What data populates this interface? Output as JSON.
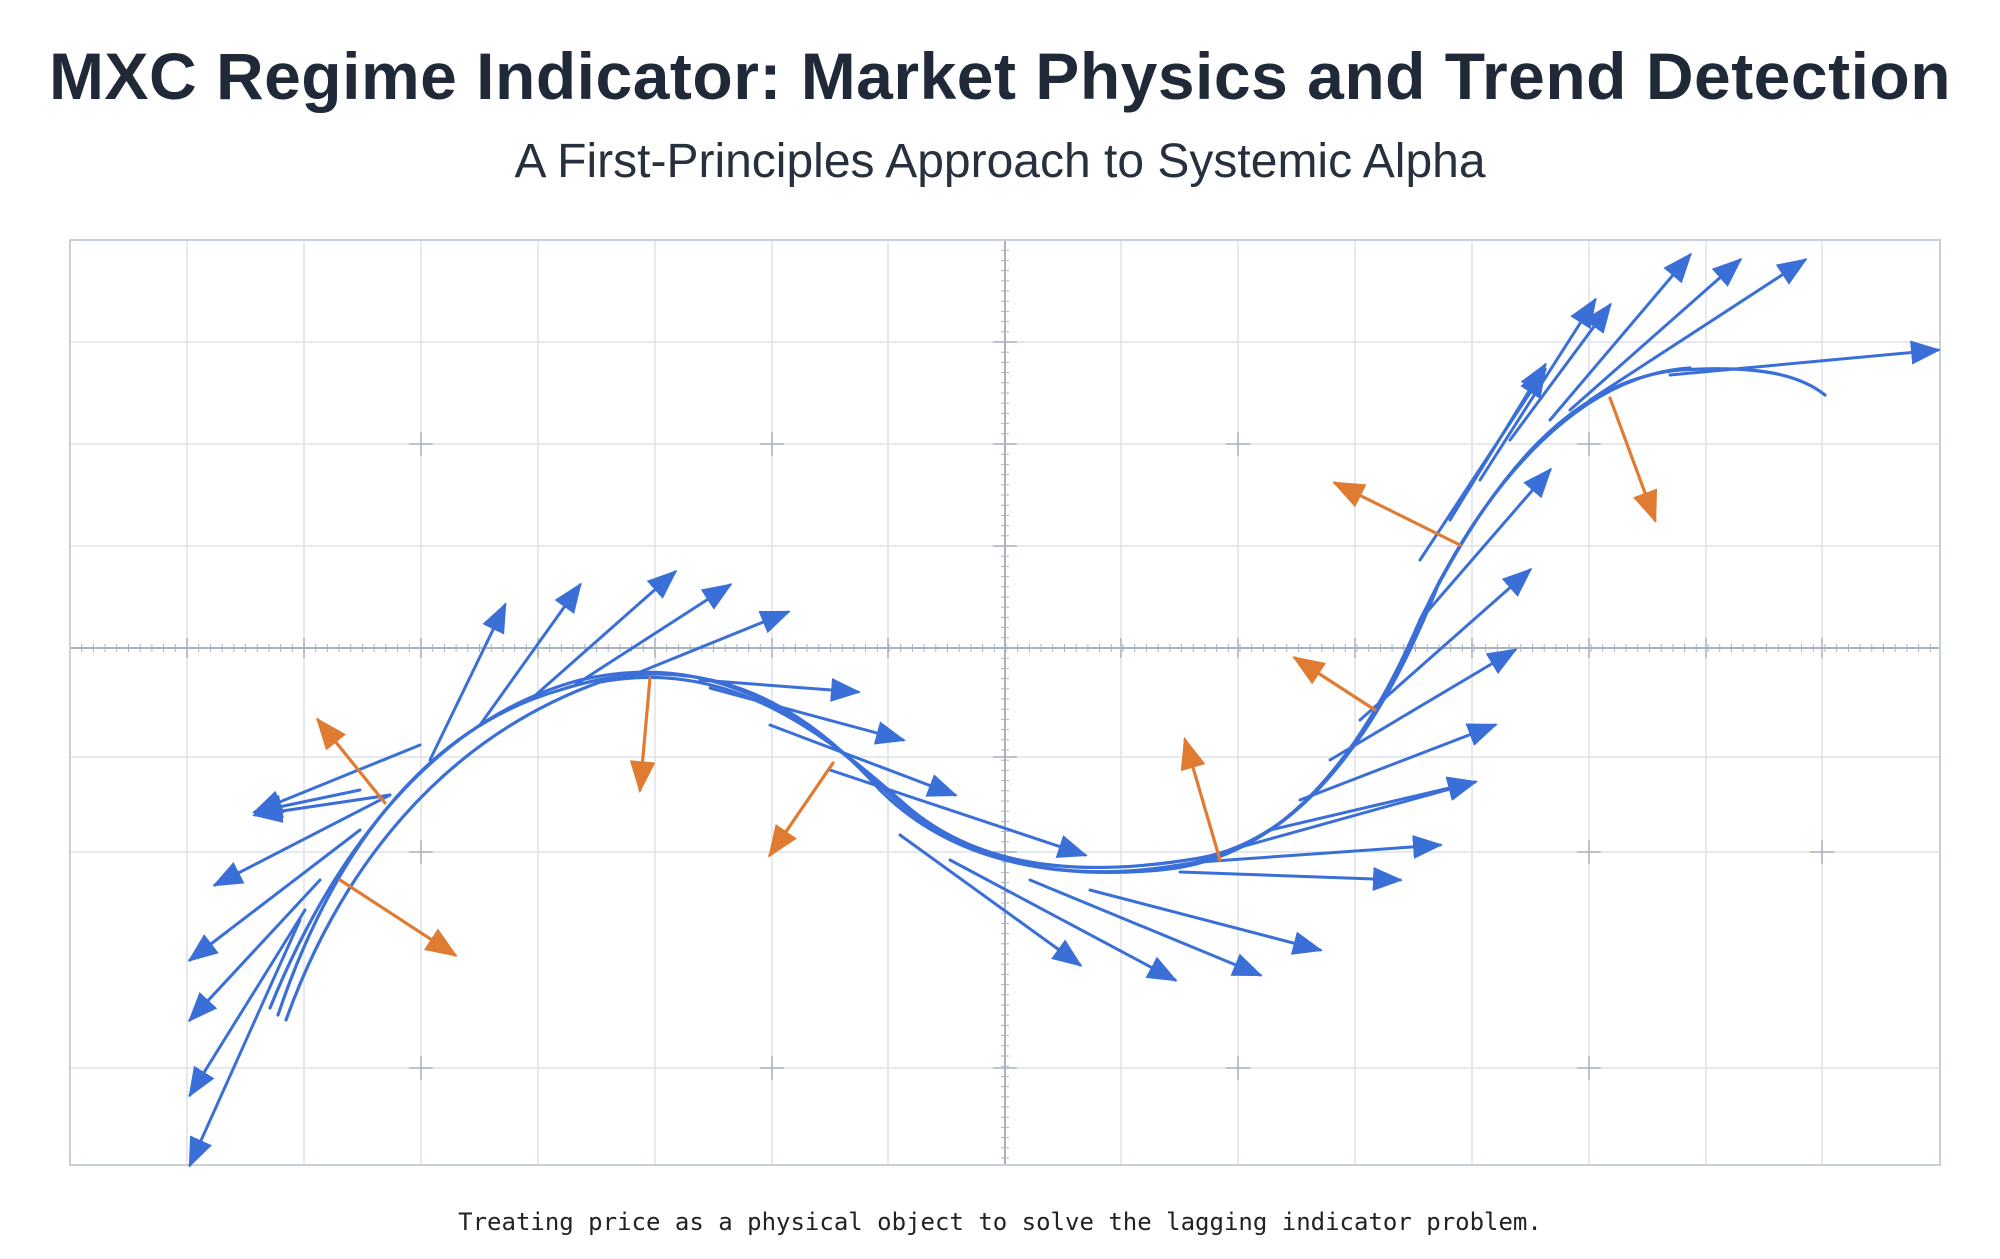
{
  "header": {
    "title": "MXC Regime Indicator: Market Physics and Trend Detection",
    "subtitle": "A First-Principles Approach to Systemic Alpha"
  },
  "caption": "Treating price as a physical object to solve the lagging indicator problem.",
  "colors": {
    "velocity_arrows": "#3b6fd8",
    "force_arrows": "#e07b32",
    "grid_minor": "#dde3ea",
    "grid_major": "#a9b3bf",
    "background": "#ffffff",
    "title": "#1f2937"
  }
}
